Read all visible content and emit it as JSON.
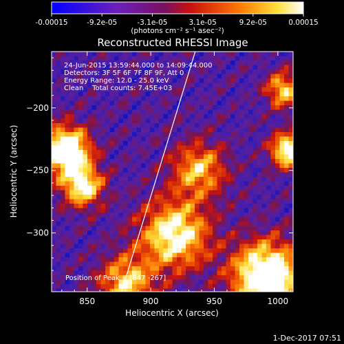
{
  "colorbar": {
    "tick_labels": [
      "-0.00015",
      "-9.2e-05",
      "-3.1e-05",
      "3.1e-05",
      "9.2e-05",
      "0.00015"
    ],
    "units": "(photons cm⁻² s⁻¹ asec⁻²)",
    "range": [
      -0.00015,
      0.00015
    ],
    "colormap": "blue-purple-red-yellow-white"
  },
  "chart_data": {
    "type": "heatmap",
    "title": "Reconstructed RHESSI Image",
    "xlabel": "Heliocentric X (arcsec)",
    "ylabel": "Heliocentric Y (arcsec)",
    "xlim": [
      822,
      1012
    ],
    "ylim": [
      -347,
      -155
    ],
    "x_ticks": [
      850,
      900,
      950,
      1000
    ],
    "y_ticks": [
      -200,
      -250,
      -300
    ],
    "x_tick_labels": [
      "850",
      "900",
      "950",
      "1000"
    ],
    "y_tick_labels": [
      "−200",
      "−250",
      "−300"
    ],
    "annotations": [
      "24-Jun-2015 13:59:44.000 to 14:09:44.000",
      "Detectors: 3F 5F 6F 7F 8F 9F, Att 0",
      "Energy Range: 12.0 - 25.0 keV",
      "Clean    Total counts: 7.45E+03"
    ],
    "peak_label": "Position of Peak = [847 -267]",
    "limb_line": {
      "x": [
        877,
        935
      ],
      "y": [
        -347,
        -155
      ]
    }
  },
  "footer": {
    "timestamp": "1-Dec-2017 07:51"
  }
}
